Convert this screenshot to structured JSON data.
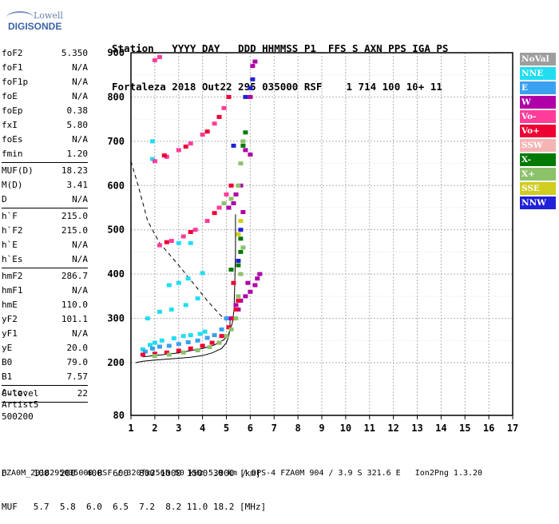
{
  "logo": {
    "line1": "Lowell",
    "line2": "DIGISONDE"
  },
  "header": {
    "line1": "Station   YYYY DAY   DDD HHMMSS P1  FFS S AXN PPS IGA PS",
    "line2": "Fortaleza 2018 Out22 295 035000 RSF    1 714 100 10+ 11"
  },
  "params": [
    {
      "name": "foF2",
      "value": "5.350"
    },
    {
      "name": "foF1",
      "value": "N/A"
    },
    {
      "name": "foF1p",
      "value": "N/A"
    },
    {
      "name": "foE",
      "value": "N/A"
    },
    {
      "name": "foEp",
      "value": "0.38"
    },
    {
      "name": "fxI",
      "value": "5.80"
    },
    {
      "name": "foEs",
      "value": "N/A"
    },
    {
      "name": "fmin",
      "value": "1.20"
    },
    {
      "sep": true
    },
    {
      "name": "MUF(D)",
      "value": "18.23"
    },
    {
      "name": "M(D)",
      "value": "3.41"
    },
    {
      "name": "D",
      "value": "N/A"
    },
    {
      "sep": true
    },
    {
      "name": "h`F",
      "value": "215.0"
    },
    {
      "name": "h`F2",
      "value": "215.0"
    },
    {
      "name": "h`E",
      "value": "N/A"
    },
    {
      "name": "h`Es",
      "value": "N/A"
    },
    {
      "sep": true
    },
    {
      "name": "hmF2",
      "value": "286.7"
    },
    {
      "name": "hmF1",
      "value": "N/A"
    },
    {
      "name": "hmE",
      "value": "110.0"
    },
    {
      "name": "yF2",
      "value": "101.1"
    },
    {
      "name": "yF1",
      "value": "N/A"
    },
    {
      "name": "yE",
      "value": "20.0"
    },
    {
      "name": "B0",
      "value": "79.0"
    },
    {
      "name": "B1",
      "value": "7.57"
    },
    {
      "sep": true
    },
    {
      "name": "C-level",
      "value": "22"
    },
    {
      "sep": true
    }
  ],
  "auto": {
    "line1": "Auto:",
    "line2": "Artist5",
    "line3": "500200"
  },
  "legend": [
    {
      "label": "NoVal",
      "color": "#9e9e9e"
    },
    {
      "label": "NNE",
      "color": "#22ddf0"
    },
    {
      "label": "E",
      "color": "#3aa0f0"
    },
    {
      "label": "W",
      "color": "#b000a8"
    },
    {
      "label": "Vo-",
      "color": "#ff3c9a"
    },
    {
      "label": "Vo+",
      "color": "#ee0033"
    },
    {
      "label": "SSW",
      "color": "#f5b4b4"
    },
    {
      "label": "X-",
      "color": "#007a00"
    },
    {
      "label": "X+",
      "color": "#8cc26a"
    },
    {
      "label": "SSE",
      "color": "#d0cc20"
    },
    {
      "label": "NNW",
      "color": "#2020d8"
    }
  ],
  "footer": {
    "line1": "D     100  200  400  600  800 1000 1500 3000 [km]",
    "line2": "MUF   5.7  5.8  6.0  6.5  7.2  8.2 11.0 18.2 [MHz]",
    "line3": "FZA0M_2018295035000.RSF / 320fx256h 50 kHz 5.0 km / DPS-4 FZA0M 904 / 3.9 S 321.6 E   Ion2Png 1.3.20"
  },
  "chart_data": {
    "type": "scatter",
    "xlim": [
      1,
      17
    ],
    "ylim": [
      80,
      900
    ],
    "x_ticks": [
      "1",
      "2",
      "3",
      "4",
      "5",
      "6",
      "7",
      "8",
      "9",
      "10",
      "11",
      "12",
      "13",
      "14",
      "15",
      "16",
      "17"
    ],
    "y_ticks": [
      "80",
      "200",
      "300",
      "400",
      "500",
      "600",
      "700",
      "800",
      "900"
    ],
    "grid": true,
    "series": [
      {
        "name": "NNE",
        "color": "#22ddf0",
        "points": [
          [
            1.5,
            230
          ],
          [
            1.8,
            240
          ],
          [
            2.0,
            245
          ],
          [
            2.3,
            250
          ],
          [
            2.8,
            255
          ],
          [
            3.2,
            260
          ],
          [
            3.5,
            262
          ],
          [
            3.9,
            265
          ],
          [
            4.1,
            270
          ],
          [
            1.7,
            300
          ],
          [
            2.2,
            315
          ],
          [
            2.7,
            320
          ],
          [
            3.3,
            330
          ],
          [
            3.8,
            345
          ],
          [
            2.6,
            375
          ],
          [
            3.0,
            380
          ],
          [
            3.4,
            390
          ],
          [
            4.0,
            402
          ],
          [
            1.9,
            660
          ],
          [
            1.9,
            700
          ],
          [
            3.0,
            470
          ],
          [
            3.5,
            470
          ]
        ]
      },
      {
        "name": "E",
        "color": "#3aa0f0",
        "points": [
          [
            1.6,
            225
          ],
          [
            1.9,
            232
          ],
          [
            2.2,
            236
          ],
          [
            2.6,
            238
          ],
          [
            3.0,
            242
          ],
          [
            3.4,
            246
          ],
          [
            3.8,
            250
          ],
          [
            4.2,
            256
          ],
          [
            4.5,
            262
          ],
          [
            4.8,
            275
          ],
          [
            5.0,
            300
          ]
        ]
      },
      {
        "name": "W",
        "color": "#b000a8",
        "points": [
          [
            5.4,
            330
          ],
          [
            5.6,
            340
          ],
          [
            5.8,
            350
          ],
          [
            6.0,
            360
          ],
          [
            6.2,
            375
          ],
          [
            6.3,
            390
          ],
          [
            6.4,
            400
          ],
          [
            5.9,
            380
          ],
          [
            5.2,
            300
          ],
          [
            5.5,
            320
          ],
          [
            5.4,
            580
          ],
          [
            5.6,
            600
          ],
          [
            5.7,
            540
          ],
          [
            6.0,
            800
          ],
          [
            6.2,
            880
          ],
          [
            6.1,
            870
          ],
          [
            5.1,
            550
          ],
          [
            5.3,
            560
          ],
          [
            5.8,
            680
          ],
          [
            6.0,
            670
          ]
        ]
      },
      {
        "name": "Vo-",
        "color": "#ff3c9a",
        "points": [
          [
            2.0,
            655
          ],
          [
            2.5,
            665
          ],
          [
            3.0,
            680
          ],
          [
            3.5,
            695
          ],
          [
            4.0,
            715
          ],
          [
            4.5,
            740
          ],
          [
            4.9,
            775
          ],
          [
            2.2,
            465
          ],
          [
            2.7,
            475
          ],
          [
            3.2,
            485
          ],
          [
            3.7,
            500
          ],
          [
            4.2,
            520
          ],
          [
            4.7,
            550
          ],
          [
            5.0,
            580
          ],
          [
            2.0,
            883
          ],
          [
            2.2,
            890
          ]
        ]
      },
      {
        "name": "Vo+",
        "color": "#ee0033",
        "points": [
          [
            1.5,
            218
          ],
          [
            2.0,
            220
          ],
          [
            2.5,
            223
          ],
          [
            3.0,
            227
          ],
          [
            3.5,
            232
          ],
          [
            4.0,
            238
          ],
          [
            4.4,
            245
          ],
          [
            4.8,
            260
          ],
          [
            5.1,
            280
          ],
          [
            5.3,
            300
          ],
          [
            5.4,
            320
          ],
          [
            5.5,
            340
          ],
          [
            5.3,
            380
          ],
          [
            2.4,
            668
          ],
          [
            3.3,
            688
          ],
          [
            4.2,
            722
          ],
          [
            4.7,
            755
          ],
          [
            5.1,
            800
          ],
          [
            2.5,
            472
          ],
          [
            3.5,
            495
          ],
          [
            4.5,
            538
          ],
          [
            5.2,
            600
          ]
        ]
      },
      {
        "name": "X-",
        "color": "#007a00",
        "points": [
          [
            5.5,
            420
          ],
          [
            5.6,
            450
          ],
          [
            5.6,
            480
          ],
          [
            5.7,
            690
          ],
          [
            5.8,
            720
          ],
          [
            5.2,
            410
          ]
        ]
      },
      {
        "name": "X+",
        "color": "#8cc26a",
        "points": [
          [
            2.0,
            215
          ],
          [
            2.6,
            218
          ],
          [
            3.2,
            223
          ],
          [
            3.8,
            228
          ],
          [
            4.3,
            235
          ],
          [
            4.7,
            245
          ],
          [
            5.0,
            260
          ],
          [
            5.2,
            275
          ],
          [
            5.4,
            300
          ],
          [
            5.5,
            350
          ],
          [
            5.6,
            400
          ],
          [
            5.7,
            460
          ],
          [
            5.5,
            600
          ],
          [
            5.7,
            700
          ],
          [
            5.6,
            650
          ],
          [
            4.9,
            560
          ],
          [
            5.2,
            570
          ]
        ]
      },
      {
        "name": "SSE",
        "color": "#d0cc20",
        "points": [
          [
            5.5,
            490
          ],
          [
            5.6,
            520
          ]
        ]
      },
      {
        "name": "NNW",
        "color": "#2020d8",
        "points": [
          [
            5.5,
            430
          ],
          [
            5.6,
            500
          ],
          [
            5.8,
            800
          ],
          [
            5.3,
            690
          ],
          [
            6.0,
            820
          ],
          [
            6.1,
            840
          ]
        ]
      }
    ],
    "curves": [
      {
        "name": "profile",
        "style": "solid",
        "points": [
          [
            1.2,
            200
          ],
          [
            1.5,
            203
          ],
          [
            2.0,
            206
          ],
          [
            2.5,
            208
          ],
          [
            3.0,
            210
          ],
          [
            3.5,
            212
          ],
          [
            4.0,
            216
          ],
          [
            4.4,
            222
          ],
          [
            4.8,
            232
          ],
          [
            5.0,
            245
          ],
          [
            5.1,
            260
          ],
          [
            5.15,
            280
          ],
          [
            5.15,
            295
          ]
        ]
      },
      {
        "name": "trace",
        "style": "solid",
        "points": [
          [
            1.5,
            213
          ],
          [
            2.0,
            216
          ],
          [
            3.0,
            222
          ],
          [
            4.0,
            232
          ],
          [
            4.5,
            240
          ],
          [
            4.9,
            252
          ],
          [
            5.1,
            265
          ],
          [
            5.25,
            290
          ],
          [
            5.32,
            320
          ],
          [
            5.35,
            380
          ],
          [
            5.38,
            450
          ],
          [
            5.38,
            535
          ]
        ]
      },
      {
        "name": "muf",
        "style": "dashed",
        "points": [
          [
            1.0,
            655
          ],
          [
            1.3,
            600
          ],
          [
            1.7,
            520
          ],
          [
            2.2,
            470
          ],
          [
            3.0,
            420
          ],
          [
            3.6,
            380
          ],
          [
            4.2,
            340
          ],
          [
            4.7,
            310
          ],
          [
            5.0,
            295
          ]
        ]
      }
    ]
  }
}
